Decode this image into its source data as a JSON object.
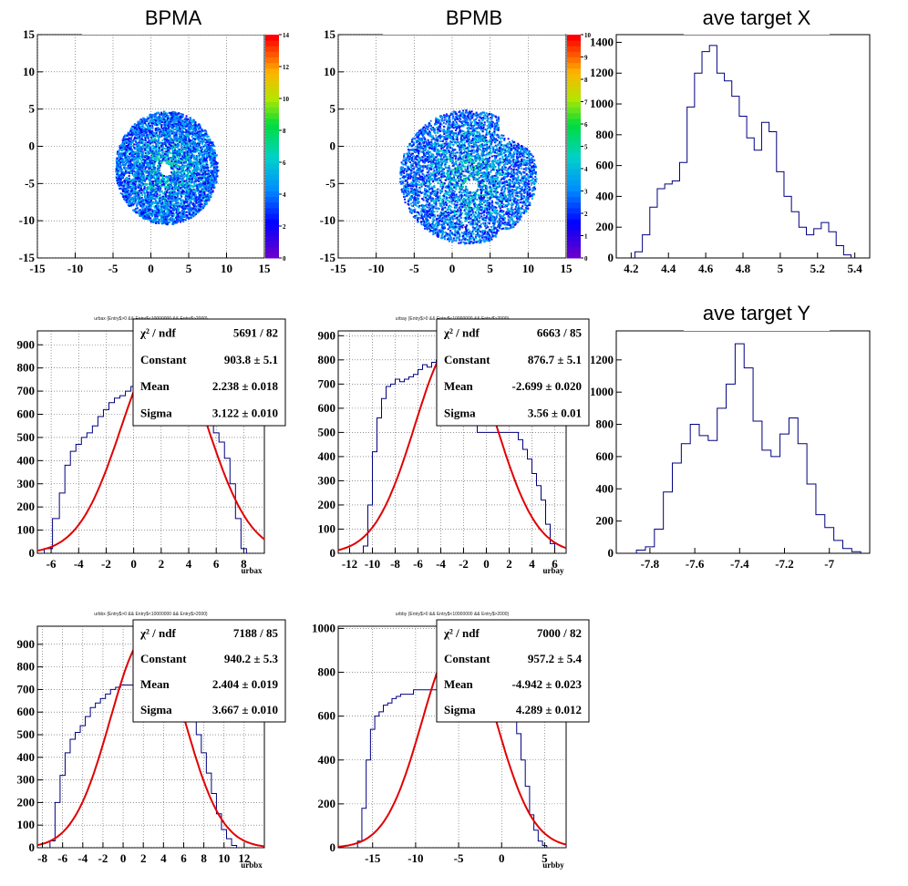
{
  "chart_data": [
    {
      "id": "bpma",
      "type": "heatmap",
      "title": "BPMA",
      "xlim": [
        -15,
        15
      ],
      "ylim": [
        -15,
        15
      ],
      "x_ticks": [
        -15,
        -10,
        -5,
        0,
        5,
        10,
        15
      ],
      "y_ticks": [
        -15,
        -10,
        -5,
        0,
        5,
        10,
        15
      ],
      "zlim": [
        0,
        14
      ],
      "z_ticks": [
        0,
        2,
        4,
        6,
        8,
        10,
        12,
        14
      ],
      "blob": {
        "center": [
          2.0,
          -2.8
        ],
        "rx": 6.8,
        "ry": 7.6,
        "hole": [
          1.8,
          -3.0
        ]
      },
      "grid": true
    },
    {
      "id": "bpmb",
      "type": "heatmap",
      "title": "BPMB",
      "xlim": [
        -15,
        15
      ],
      "ylim": [
        -15,
        15
      ],
      "x_ticks": [
        -15,
        -10,
        -5,
        0,
        5,
        10,
        15
      ],
      "y_ticks": [
        -15,
        -10,
        -5,
        0,
        5,
        10,
        15
      ],
      "zlim": [
        0,
        10
      ],
      "z_ticks": [
        0,
        1,
        2,
        3,
        4,
        5,
        6,
        7,
        8,
        9,
        10
      ],
      "blob": {
        "center": [
          2.0,
          -4.0
        ],
        "rx": 9.0,
        "ry": 9.0,
        "hole": [
          2.5,
          -5.2
        ]
      },
      "grid": true
    },
    {
      "id": "avex",
      "type": "line",
      "title": "ave target X",
      "xlim": [
        4.12,
        5.48
      ],
      "ylim": [
        0,
        1450
      ],
      "x_ticks": [
        4.2,
        4.4,
        4.6,
        4.8,
        5,
        5.2,
        5.4
      ],
      "x_tick_labels": [
        "4.2",
        "4.4",
        "4.6",
        "4.8",
        "5",
        "5.2",
        "5.4"
      ],
      "y_ticks": [
        0,
        200,
        400,
        600,
        800,
        1000,
        1200,
        1400
      ],
      "y_tick_labels": [
        "0",
        "200",
        "400",
        "600",
        "800",
        "1000",
        "1200",
        "1400"
      ],
      "series": [
        {
          "x": [
            4.24,
            4.28,
            4.32,
            4.36,
            4.4,
            4.44,
            4.48,
            4.52,
            4.56,
            4.6,
            4.64,
            4.68,
            4.72,
            4.76,
            4.8,
            4.84,
            4.88,
            4.92,
            4.96,
            5.0,
            5.04,
            5.08,
            5.12,
            5.16,
            5.2,
            5.24,
            5.28,
            5.32,
            5.36
          ],
          "y": [
            40,
            150,
            330,
            450,
            480,
            500,
            620,
            980,
            1200,
            1340,
            1380,
            1200,
            1150,
            1050,
            920,
            780,
            700,
            880,
            820,
            560,
            400,
            300,
            200,
            150,
            190,
            230,
            170,
            80,
            20
          ]
        }
      ],
      "grid": false
    },
    {
      "id": "urbax",
      "type": "line",
      "title": "urbax {Entry$>0 && Entry$<10000000 && Entry$>2000}",
      "xlabel": "urbax",
      "xlim": [
        -7,
        9.5
      ],
      "ylim": [
        0,
        960
      ],
      "x_ticks": [
        -6,
        -4,
        -2,
        0,
        2,
        4,
        6,
        8
      ],
      "x_tick_labels": [
        "-6",
        "-4",
        "-2",
        "0",
        "2",
        "4",
        "6",
        "8"
      ],
      "y_ticks": [
        0,
        100,
        200,
        300,
        400,
        500,
        600,
        700,
        800,
        900
      ],
      "y_tick_labels": [
        "0",
        "100",
        "200",
        "300",
        "400",
        "500",
        "600",
        "700",
        "800",
        "900"
      ],
      "series": [
        {
          "x": [
            -6.2,
            -5.6,
            -5.2,
            -4.8,
            -4.4,
            -4,
            -3.6,
            -3.2,
            -2.8,
            -2.4,
            -2,
            -1.6,
            -1.2,
            -0.8,
            -0.4,
            0,
            5.6,
            6,
            6.4,
            6.8,
            7.2,
            7.6,
            8
          ],
          "y": [
            20,
            150,
            260,
            380,
            440,
            470,
            500,
            520,
            550,
            590,
            620,
            650,
            670,
            680,
            700,
            720,
            580,
            520,
            480,
            410,
            300,
            150,
            20
          ]
        },
        {
          "name": "gaus",
          "mean": 2.238,
          "sigma": 3.122,
          "amp": 903.8
        }
      ],
      "stats": {
        "chi2_label": "χ² / ndf",
        "chi2_value": "5691 / 82",
        "constant_label": "Constant",
        "constant_value": "903.8 ± 5.1",
        "mean_label": "Mean",
        "mean_value": "2.238 ± 0.018",
        "sigma_label": "Sigma",
        "sigma_value": "3.122 ± 0.010"
      },
      "grid": true
    },
    {
      "id": "urbay",
      "type": "line",
      "title": "urbay {Entry$>0 && Entry$<10000000 && Entry$>2000}",
      "xlabel": "urbay",
      "xlim": [
        -13,
        7
      ],
      "ylim": [
        0,
        920
      ],
      "x_ticks": [
        -12,
        -10,
        -8,
        -6,
        -4,
        -2,
        0,
        2,
        4,
        6
      ],
      "x_tick_labels": [
        "-12",
        "-10",
        "-8",
        "-6",
        "-4",
        "-2",
        "0",
        "2",
        "4",
        "6"
      ],
      "y_ticks": [
        0,
        100,
        200,
        300,
        400,
        500,
        600,
        700,
        800,
        900
      ],
      "y_tick_labels": [
        "0",
        "100",
        "200",
        "300",
        "400",
        "500",
        "600",
        "700",
        "800",
        "900"
      ],
      "series": [
        {
          "x": [
            -10.6,
            -10.2,
            -9.8,
            -9.4,
            -9,
            -8.6,
            -8.2,
            -7.8,
            -7.4,
            -7,
            -6.6,
            -6.2,
            -5.8,
            -5.4,
            -5,
            -4.6,
            -4.2,
            2.6,
            3,
            3.4,
            3.8,
            4.2,
            4.6,
            5,
            5.4,
            5.8
          ],
          "y": [
            30,
            200,
            420,
            560,
            640,
            690,
            700,
            720,
            710,
            720,
            730,
            740,
            760,
            780,
            770,
            790,
            800,
            500,
            470,
            430,
            390,
            330,
            280,
            220,
            120,
            40
          ]
        },
        {
          "name": "gaus",
          "mean": -2.699,
          "sigma": 3.56,
          "amp": 876.7
        }
      ],
      "stats": {
        "chi2_label": "χ² / ndf",
        "chi2_value": "6663 / 85",
        "constant_label": "Constant",
        "constant_value": "876.7 ± 5.1",
        "mean_label": "Mean",
        "mean_value": "-2.699 ± 0.020",
        "sigma_label": "Sigma",
        "sigma_value": "3.56 ± 0.01"
      },
      "grid": true
    },
    {
      "id": "avey",
      "type": "line",
      "title": "ave target Y",
      "xlim": [
        -7.95,
        -6.82
      ],
      "ylim": [
        0,
        1380
      ],
      "x_ticks": [
        -7.8,
        -7.6,
        -7.4,
        -7.2,
        -7
      ],
      "x_tick_labels": [
        "-7.8",
        "-7.6",
        "-7.4",
        "-7.2",
        "-7"
      ],
      "y_ticks": [
        0,
        200,
        400,
        600,
        800,
        1000,
        1200
      ],
      "y_tick_labels": [
        "0",
        "200",
        "400",
        "600",
        "800",
        "1000",
        "1200"
      ],
      "series": [
        {
          "x": [
            -7.84,
            -7.8,
            -7.76,
            -7.72,
            -7.68,
            -7.64,
            -7.6,
            -7.56,
            -7.52,
            -7.48,
            -7.44,
            -7.4,
            -7.36,
            -7.32,
            -7.28,
            -7.24,
            -7.2,
            -7.16,
            -7.12,
            -7.08,
            -7.04,
            -7.0,
            -6.96,
            -6.92,
            -6.88
          ],
          "y": [
            20,
            40,
            150,
            380,
            560,
            680,
            800,
            730,
            700,
            900,
            1050,
            1300,
            1150,
            820,
            640,
            600,
            740,
            840,
            680,
            430,
            240,
            160,
            80,
            30,
            10
          ]
        }
      ],
      "grid": false
    },
    {
      "id": "urbbx",
      "type": "line",
      "title": "urbbx {Entry$>0 && Entry$<10000000 && Entry$>2000}",
      "xlabel": "urbbx",
      "xlim": [
        -8.5,
        14
      ],
      "ylim": [
        0,
        980
      ],
      "x_ticks": [
        -8,
        -6,
        -4,
        -2,
        0,
        2,
        4,
        6,
        8,
        10,
        12
      ],
      "x_tick_labels": [
        "-8",
        "-6",
        "-4",
        "-2",
        "0",
        "2",
        "4",
        "6",
        "8",
        "10",
        "12"
      ],
      "y_ticks": [
        0,
        100,
        200,
        300,
        400,
        500,
        600,
        700,
        800,
        900
      ],
      "y_tick_labels": [
        "0",
        "100",
        "200",
        "300",
        "400",
        "500",
        "600",
        "700",
        "800",
        "900"
      ],
      "series": [
        {
          "x": [
            -7,
            -6.5,
            -6,
            -5.5,
            -5,
            -4.5,
            -4,
            -3.5,
            -3,
            -2.5,
            -2,
            -1.5,
            -1,
            -0.5,
            0,
            7,
            7.5,
            8,
            8.5,
            9,
            9.5,
            10,
            10.5,
            11
          ],
          "y": [
            30,
            200,
            320,
            420,
            480,
            510,
            540,
            580,
            620,
            640,
            660,
            680,
            700,
            710,
            720,
            560,
            500,
            420,
            330,
            240,
            150,
            80,
            40,
            10
          ]
        },
        {
          "name": "gaus",
          "mean": 2.404,
          "sigma": 3.667,
          "amp": 940.2
        }
      ],
      "stats": {
        "chi2_label": "χ² / ndf",
        "chi2_value": "7188 / 85",
        "constant_label": "Constant",
        "constant_value": "940.2 ± 5.3",
        "mean_label": "Mean",
        "mean_value": "2.404 ± 0.019",
        "sigma_label": "Sigma",
        "sigma_value": "3.667 ± 0.010"
      },
      "grid": true
    },
    {
      "id": "urbby",
      "type": "line",
      "title": "urbby {Entry$>0 && Entry$<10000000 && Entry$>2000}",
      "xlabel": "urbby",
      "xlim": [
        -19,
        7.5
      ],
      "ylim": [
        0,
        1010
      ],
      "x_ticks": [
        -15,
        -10,
        -5,
        0,
        5
      ],
      "x_tick_labels": [
        "-15",
        "-10",
        "-5",
        "0",
        "5"
      ],
      "y_ticks": [
        0,
        200,
        400,
        600,
        800,
        1000
      ],
      "y_tick_labels": [
        "0",
        "200",
        "400",
        "600",
        "800",
        "1000"
      ],
      "series": [
        {
          "x": [
            -16.5,
            -16,
            -15.5,
            -15,
            -14.5,
            -14,
            -13.5,
            -13,
            -12.5,
            -12,
            -11.5,
            -11,
            -10.5,
            -10,
            1.5,
            2,
            2.5,
            3,
            3.5,
            4,
            4.5,
            5
          ],
          "y": [
            30,
            180,
            400,
            540,
            600,
            620,
            650,
            660,
            680,
            690,
            700,
            700,
            700,
            720,
            600,
            520,
            400,
            280,
            150,
            80,
            30,
            10
          ]
        },
        {
          "name": "gaus",
          "mean": -4.942,
          "sigma": 4.289,
          "amp": 957.2
        }
      ],
      "stats": {
        "chi2_label": "χ² / ndf",
        "chi2_value": "7000 / 82",
        "constant_label": "Constant",
        "constant_value": "957.2 ± 5.4",
        "mean_label": "Mean",
        "mean_value": "-4.942 ± 0.023",
        "sigma_label": "Sigma",
        "sigma_value": "4.289 ± 0.012"
      },
      "grid": true
    }
  ]
}
